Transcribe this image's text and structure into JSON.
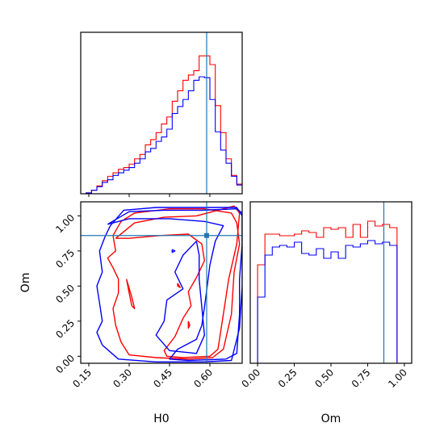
{
  "chart_data": {
    "type": "corner",
    "params": [
      "H0",
      "Om"
    ],
    "truth": {
      "H0": 0.588,
      "Om": 0.86
    },
    "colors": {
      "series_a": "#ff0000",
      "series_b": "#0000ff",
      "truth": "#1f77b4"
    },
    "grid": false,
    "legend": "none",
    "panels": {
      "hist_h0": {
        "type": "step-histogram",
        "xlabel": "",
        "xlim": [
          0.12,
          0.72
        ],
        "bin_edges": [
          0.12,
          0.14,
          0.16,
          0.18,
          0.2,
          0.22,
          0.24,
          0.26,
          0.28,
          0.3,
          0.32,
          0.34,
          0.36,
          0.38,
          0.4,
          0.42,
          0.44,
          0.46,
          0.48,
          0.5,
          0.52,
          0.54,
          0.56,
          0.58,
          0.6,
          0.62,
          0.64,
          0.66,
          0.68,
          0.7,
          0.72
        ],
        "ylim": [
          0,
          185
        ],
        "series": [
          {
            "color": "#ff0000",
            "values": [
              0,
              1,
              4,
              9,
              15,
              20,
              24,
              28,
              30,
              34,
              40,
              45,
              56,
              62,
              70,
              80,
              88,
              106,
              118,
              130,
              136,
              141,
              158,
              158,
              148,
              101,
              70,
              40,
              21,
              11
            ]
          },
          {
            "color": "#0000ff",
            "values": [
              0,
              1,
              4,
              8,
              13,
              16,
              21,
              24,
              27,
              30,
              35,
              40,
              48,
              52,
              60,
              65,
              74,
              92,
              100,
              108,
              118,
              130,
              134,
              133,
              108,
              71,
              50,
              35,
              20,
              10
            ]
          }
        ]
      },
      "contour_h0_om": {
        "type": "contour",
        "xlabel": "H0",
        "ylabel": "Om",
        "xlim": [
          0.12,
          0.72
        ],
        "ylim": [
          -0.05,
          1.1
        ],
        "xticks": [
          "0.15",
          "0.30",
          "0.45",
          "0.60"
        ],
        "yticks": [
          "0.00",
          "0.25",
          "0.50",
          "0.75",
          "1.00"
        ],
        "series": [
          {
            "color": "#ff0000",
            "contours": [
              [
                [
                  0.25,
                  0.84
                ],
                [
                  0.32,
                  0.95
                ],
                [
                  0.43,
                  0.99
                ],
                [
                  0.55,
                  1.0
                ],
                [
                  0.65,
                  1.05
                ],
                [
                  0.69,
                  1.07
                ],
                [
                  0.71,
                  1.02
                ],
                [
                  0.7,
                  0.8
                ],
                [
                  0.67,
                  0.55
                ],
                [
                  0.65,
                  0.3
                ],
                [
                  0.63,
                  0.05
                ],
                [
                  0.6,
                  0.0
                ],
                [
                  0.5,
                  -0.01
                ],
                [
                  0.44,
                  0.0
                ],
                [
                  0.43,
                  0.04
                ],
                [
                  0.47,
                  0.14
                ],
                [
                  0.5,
                  0.27
                ],
                [
                  0.53,
                  0.36
                ],
                [
                  0.52,
                  0.46
                ],
                [
                  0.55,
                  0.56
                ],
                [
                  0.58,
                  0.68
                ],
                [
                  0.57,
                  0.8
                ],
                [
                  0.52,
                  0.87
                ],
                [
                  0.42,
                  0.86
                ],
                [
                  0.3,
                  0.84
                ],
                [
                  0.25,
                  0.84
                ]
              ],
              [
                [
                  0.24,
                  0.86
                ],
                [
                  0.25,
                  0.75
                ],
                [
                  0.22,
                  0.7
                ],
                [
                  0.24,
                  0.63
                ],
                [
                  0.26,
                  0.55
                ],
                [
                  0.26,
                  0.45
                ],
                [
                  0.24,
                  0.34
                ],
                [
                  0.25,
                  0.22
                ],
                [
                  0.27,
                  0.1
                ],
                [
                  0.3,
                  0.01
                ],
                [
                  0.4,
                  -0.01
                ],
                [
                  0.52,
                  -0.02
                ],
                [
                  0.61,
                  -0.01
                ],
                [
                  0.65,
                  0.05
                ],
                [
                  0.68,
                  0.3
                ],
                [
                  0.69,
                  0.6
                ],
                [
                  0.71,
                  0.8
                ],
                [
                  0.7,
                  0.95
                ],
                [
                  0.68,
                  1.02
                ],
                [
                  0.58,
                  1.05
                ],
                [
                  0.45,
                  1.05
                ],
                [
                  0.32,
                  1.02
                ],
                [
                  0.27,
                  0.96
                ],
                [
                  0.24,
                  0.86
                ]
              ],
              [
                [
                  0.29,
                  0.55
                ],
                [
                  0.3,
                  0.45
                ],
                [
                  0.31,
                  0.36
                ],
                [
                  0.32,
                  0.34
                ],
                [
                  0.31,
                  0.42
                ],
                [
                  0.29,
                  0.55
                ]
              ],
              [
                [
                  0.48,
                  0.52
                ],
                [
                  0.49,
                  0.49
                ],
                [
                  0.48,
                  0.5
                ],
                [
                  0.48,
                  0.52
                ]
              ],
              [
                [
                  0.52,
                  0.25
                ],
                [
                  0.525,
                  0.22
                ],
                [
                  0.52,
                  0.2
                ],
                [
                  0.52,
                  0.25
                ]
              ]
            ]
          },
          {
            "color": "#0000ff",
            "contours": [
              [
                [
                  0.22,
                  0.94
                ],
                [
                  0.3,
                  1.03
                ],
                [
                  0.43,
                  1.04
                ],
                [
                  0.57,
                  1.04
                ],
                [
                  0.7,
                  1.05
                ],
                [
                  0.72,
                  1.02
                ],
                [
                  0.72,
                  0.8
                ],
                [
                  0.71,
                  0.55
                ],
                [
                  0.71,
                  0.3
                ],
                [
                  0.7,
                  0.02
                ],
                [
                  0.66,
                  -0.02
                ],
                [
                  0.52,
                  -0.03
                ],
                [
                  0.45,
                  -0.02
                ],
                [
                  0.48,
                  0.05
                ],
                [
                  0.55,
                  0.12
                ],
                [
                  0.57,
                  0.22
                ],
                [
                  0.58,
                  0.35
                ],
                [
                  0.59,
                  0.5
                ],
                [
                  0.6,
                  0.65
                ],
                [
                  0.62,
                  0.82
                ],
                [
                  0.65,
                  0.93
                ],
                [
                  0.58,
                  0.96
                ],
                [
                  0.45,
                  0.98
                ],
                [
                  0.3,
                  0.98
                ],
                [
                  0.24,
                  0.95
                ],
                [
                  0.22,
                  0.94
                ]
              ],
              [
                [
                  0.23,
                  0.93
                ],
                [
                  0.21,
                  0.85
                ],
                [
                  0.19,
                  0.75
                ],
                [
                  0.2,
                  0.6
                ],
                [
                  0.18,
                  0.5
                ],
                [
                  0.19,
                  0.38
                ],
                [
                  0.2,
                  0.25
                ],
                [
                  0.18,
                  0.17
                ],
                [
                  0.2,
                  0.08
                ],
                [
                  0.26,
                  -0.02
                ],
                [
                  0.4,
                  -0.04
                ],
                [
                  0.58,
                  -0.04
                ],
                [
                  0.68,
                  -0.03
                ],
                [
                  0.71,
                  0.2
                ],
                [
                  0.72,
                  0.5
                ],
                [
                  0.72,
                  0.8
                ],
                [
                  0.72,
                  1.0
                ],
                [
                  0.7,
                  1.06
                ],
                [
                  0.55,
                  1.06
                ],
                [
                  0.4,
                  1.06
                ],
                [
                  0.28,
                  1.04
                ],
                [
                  0.23,
                  0.93
                ]
              ],
              [
                [
                  0.55,
                  0.82
                ],
                [
                  0.5,
                  0.72
                ],
                [
                  0.47,
                  0.6
                ],
                [
                  0.5,
                  0.48
                ],
                [
                  0.44,
                  0.4
                ],
                [
                  0.43,
                  0.25
                ],
                [
                  0.4,
                  0.15
                ],
                [
                  0.45,
                  0.04
                ],
                [
                  0.55,
                  0.02
                ],
                [
                  0.58,
                  0.15
                ],
                [
                  0.57,
                  0.35
                ],
                [
                  0.56,
                  0.55
                ],
                [
                  0.56,
                  0.72
                ],
                [
                  0.55,
                  0.82
                ]
              ],
              [
                [
                  0.46,
                  0.76
                ],
                [
                  0.47,
                  0.75
                ],
                [
                  0.46,
                  0.74
                ],
                [
                  0.46,
                  0.76
                ]
              ]
            ]
          }
        ]
      },
      "hist_om": {
        "type": "step-histogram",
        "xlabel": "Om",
        "xlim": [
          -0.05,
          1.05
        ],
        "xticks": [
          "0.00",
          "0.25",
          "0.50",
          "0.75",
          "1.00"
        ],
        "bin_edges": [
          -0.05,
          0.0,
          0.05,
          0.1,
          0.15,
          0.2,
          0.25,
          0.3,
          0.35,
          0.4,
          0.45,
          0.5,
          0.55,
          0.6,
          0.65,
          0.7,
          0.75,
          0.8,
          0.85,
          0.9,
          0.95,
          1.0,
          1.05
        ],
        "ylim": [
          0,
          100
        ],
        "series": [
          {
            "color": "#ff0000",
            "values": [
              0,
              61,
              80,
              80,
              79,
              79,
              80,
              82,
              81,
              78,
              84,
              83,
              84,
              78,
              86,
              78,
              88,
              85,
              86,
              84,
              0,
              0
            ]
          },
          {
            "color": "#0000ff",
            "values": [
              0,
              41,
              67,
              72,
              73,
              72,
              75,
              68,
              67,
              71,
              65,
              69,
              65,
              73,
              72,
              74,
              76,
              74,
              75,
              73,
              0,
              0
            ]
          }
        ]
      }
    }
  }
}
